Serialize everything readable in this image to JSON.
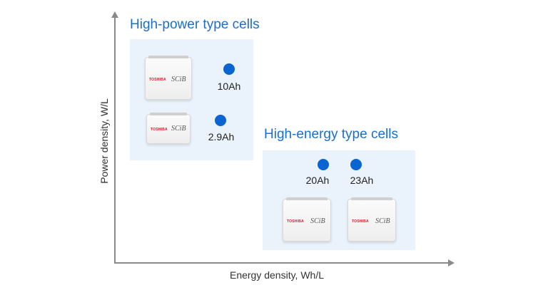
{
  "axes": {
    "x_label": "Energy density, Wh/L",
    "y_label": "Power density, W/L"
  },
  "groups": [
    {
      "title": "High-power type cells",
      "items": [
        {
          "capacity": "10Ah",
          "brand": "TOSHIBA",
          "model": "SCiB"
        },
        {
          "capacity": "2.9Ah",
          "brand": "TOSHIBA",
          "model": "SCiB"
        }
      ]
    },
    {
      "title": "High-energy type cells",
      "items": [
        {
          "capacity": "20Ah",
          "brand": "TOSHIBA",
          "model": "SCiB"
        },
        {
          "capacity": "23Ah",
          "brand": "TOSHIBA",
          "model": "SCiB"
        }
      ]
    }
  ],
  "colors": {
    "accent": "#1a6fc9",
    "dot": "#0a64d2",
    "box": "#eaf2fb",
    "axis": "#8a8a8a",
    "brand_red": "#d21d2d"
  }
}
